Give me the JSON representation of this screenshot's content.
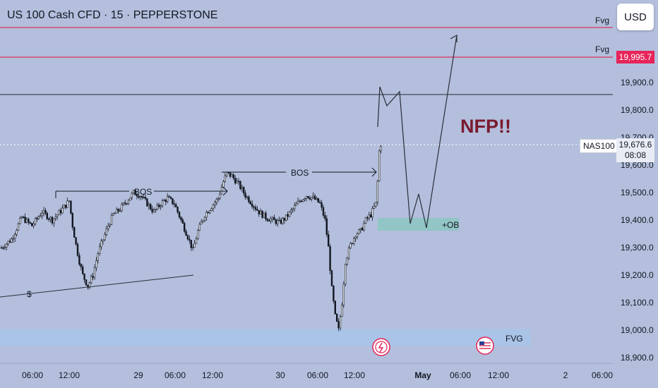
{
  "header": {
    "title": "US 100 Cash CFD · 15 · PEPPERSTONE",
    "currency_button": "USD"
  },
  "price_axis": {
    "ticks": [
      "19,900.0",
      "19,800.0",
      "19,700.0",
      "19,600.0",
      "19,500.0",
      "19,400.0",
      "19,300.0",
      "19,200.0",
      "19,100.0",
      "19,000.0",
      "18,900.0"
    ],
    "current_symbol": "NAS100",
    "current_price": "19,676.6",
    "countdown": "08:08",
    "fvg_line_price": "19,995.7"
  },
  "time_axis": {
    "labels": [
      "06:00",
      "12:00",
      "29",
      "06:00",
      "12:00",
      "30",
      "06:00",
      "12:00",
      "May",
      "06:00",
      "12:00",
      "2",
      "06:00"
    ]
  },
  "annotations": {
    "fvg_top": "Fvg",
    "fvg_second": "Fvg",
    "fvg_bottom": "FVG",
    "bos_1": "BOS",
    "bos_2": "BOS",
    "order_block": "+OB",
    "liquidity": "$",
    "headline": "NFP!!"
  },
  "colors": {
    "background": "#b3bfdc",
    "fvg_line": "#d8345f",
    "fvg_zone": "#a8c4e8",
    "ob_zone": "#8ec5c2",
    "headline": "#7a1a2e",
    "candles": "#131722"
  },
  "chart_data": {
    "type": "candlestick",
    "x_unit": "15-minute bars",
    "y_unit": "price",
    "ylim": [
      18880,
      20040
    ],
    "close_path": [
      [
        0,
        19300
      ],
      [
        6,
        19330
      ],
      [
        12,
        19410
      ],
      [
        18,
        19380
      ],
      [
        24,
        19430
      ],
      [
        30,
        19400
      ],
      [
        36,
        19440
      ],
      [
        40,
        19470
      ],
      [
        42,
        19380
      ],
      [
        44,
        19310
      ],
      [
        46,
        19250
      ],
      [
        48,
        19200
      ],
      [
        51,
        19160
      ],
      [
        54,
        19200
      ],
      [
        57,
        19280
      ],
      [
        60,
        19330
      ],
      [
        63,
        19380
      ],
      [
        66,
        19420
      ],
      [
        70,
        19440
      ],
      [
        74,
        19470
      ],
      [
        78,
        19500
      ],
      [
        82,
        19490
      ],
      [
        86,
        19460
      ],
      [
        90,
        19430
      ],
      [
        94,
        19460
      ],
      [
        98,
        19480
      ],
      [
        102,
        19460
      ],
      [
        106,
        19400
      ],
      [
        110,
        19340
      ],
      [
        113,
        19290
      ],
      [
        116,
        19360
      ],
      [
        120,
        19420
      ],
      [
        124,
        19450
      ],
      [
        128,
        19480
      ],
      [
        131,
        19540
      ],
      [
        133,
        19570
      ],
      [
        136,
        19560
      ],
      [
        140,
        19530
      ],
      [
        144,
        19490
      ],
      [
        148,
        19460
      ],
      [
        152,
        19430
      ],
      [
        156,
        19410
      ],
      [
        160,
        19400
      ],
      [
        164,
        19390
      ],
      [
        168,
        19410
      ],
      [
        172,
        19440
      ],
      [
        176,
        19470
      ],
      [
        180,
        19490
      ],
      [
        184,
        19480
      ],
      [
        188,
        19460
      ],
      [
        191,
        19400
      ],
      [
        193,
        19300
      ],
      [
        195,
        19150
      ],
      [
        197,
        19050
      ],
      [
        199,
        19000
      ],
      [
        201,
        19100
      ],
      [
        203,
        19250
      ],
      [
        206,
        19310
      ],
      [
        209,
        19350
      ],
      [
        212,
        19360
      ],
      [
        215,
        19400
      ],
      [
        218,
        19420
      ],
      [
        221,
        19460
      ],
      [
        222,
        19540
      ],
      [
        223,
        19650
      ],
      [
        224,
        19676.6
      ]
    ]
  }
}
